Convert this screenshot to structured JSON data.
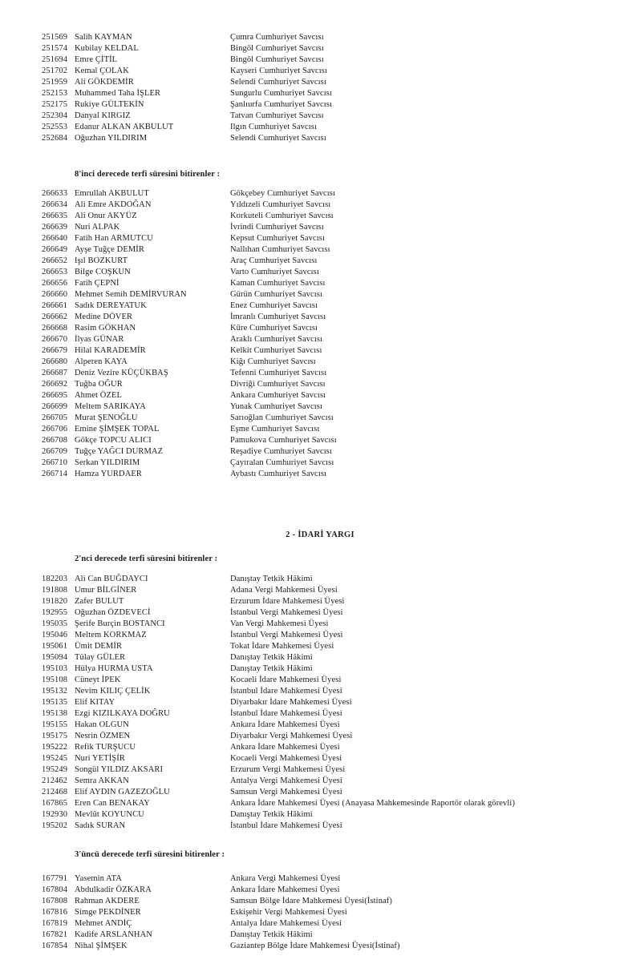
{
  "document": {
    "kind": "scanned-judicial-promotion-list",
    "text_color": "#1c1c1c",
    "page_bg": "#ffffff"
  },
  "headings": {
    "degree8": "8'inci derecede terfi süresini bitirenler :",
    "idari_yargi": "2 - İDARİ YARGI",
    "degree2": "2'nci derecede terfi süresini bitirenler :",
    "degree3": "3'üncü derecede terfi süresini bitirenler :"
  },
  "lists": {
    "adli_continuation": [
      {
        "no": "251569",
        "name": "Salih KAYMAN",
        "title": "Çumra Cumhuriyet Savcısı"
      },
      {
        "no": "251574",
        "name": "Kubilay KELDAL",
        "title": "Bingöl Cumhuriyet Savcısı"
      },
      {
        "no": "251694",
        "name": "Emre ÇİTİL",
        "title": "Bingöl Cumhuriyet Savcısı"
      },
      {
        "no": "251702",
        "name": "Kemal ÇOLAK",
        "title": "Kayseri Cumhuriyet Savcısı"
      },
      {
        "no": "251959",
        "name": "Ali GÖKDEMİR",
        "title": "Selendi Cumhuriyet Savcısı"
      },
      {
        "no": "252153",
        "name": "Muhammed Taha İŞLER",
        "title": "Sungurlu Cumhuriyet Savcısı"
      },
      {
        "no": "252175",
        "name": "Rukiye GÜLTEKİN",
        "title": "Şanlıurfa Cumhuriyet Savcısı"
      },
      {
        "no": "252304",
        "name": "Danyal KIRGIZ",
        "title": "Tatvan Cumhuriyet Savcısı"
      },
      {
        "no": "252553",
        "name": "Edanur ALKAN AKBULUT",
        "title": "Ilgın Cumhuriyet Savcısı"
      },
      {
        "no": "252684",
        "name": "Oğuzhan YILDIRIM",
        "title": "Selendi Cumhuriyet Savcısı"
      }
    ],
    "degree8": [
      {
        "no": "266633",
        "name": "Emrullah AKBULUT",
        "title": "Gökçebey Cumhuriyet Savcısı"
      },
      {
        "no": "266634",
        "name": "Ali Emre AKDOĞAN",
        "title": "Yıldızeli Cumhuriyet Savcısı"
      },
      {
        "no": "266635",
        "name": "Ali Onur AKYÜZ",
        "title": "Korkuteli Cumhuriyet Savcısı"
      },
      {
        "no": "266639",
        "name": "Nuri ALPAK",
        "title": "İvrindi Cumhuriyet Savcısı"
      },
      {
        "no": "266640",
        "name": "Fatih Han ARMUTCU",
        "title": "Kepsut Cumhuriyet Savcısı"
      },
      {
        "no": "266649",
        "name": "Ayşe Tuğçe DEMİR",
        "title": "Nallıhan Cumhuriyet Savcısı"
      },
      {
        "no": "266652",
        "name": "Işıl BOZKURT",
        "title": "Araç Cumhuriyet Savcısı"
      },
      {
        "no": "266653",
        "name": "Bilge COŞKUN",
        "title": "Varto Cumhuriyet Savcısı"
      },
      {
        "no": "266656",
        "name": "Fatih ÇEPNİ",
        "title": "Kaman Cumhuriyet Savcısı"
      },
      {
        "no": "266660",
        "name": "Mehmet Semih DEMİRVURAN",
        "title": "Gürün Cumhuriyet Savcısı"
      },
      {
        "no": "266661",
        "name": "Sadık DEREYATUK",
        "title": "Enez Cumhuriyet Savcısı"
      },
      {
        "no": "266662",
        "name": "Medine DÖVER",
        "title": "İmranlı Cumhuriyet Savcısı"
      },
      {
        "no": "266668",
        "name": "Rasim GÖKHAN",
        "title": "Küre Cumhuriyet Savcısı"
      },
      {
        "no": "266670",
        "name": "İlyas GÜNAR",
        "title": "Araklı Cumhuriyet Savcısı"
      },
      {
        "no": "266679",
        "name": "Hilal KARADEMİR",
        "title": "Kelkit Cumhuriyet Savcısı"
      },
      {
        "no": "266680",
        "name": "Alperen KAYA",
        "title": "Kiğı Cumhuriyet Savcısı"
      },
      {
        "no": "266687",
        "name": "Deniz Vezire KÜÇÜKBAŞ",
        "title": "Tefenni Cumhuriyet Savcısı"
      },
      {
        "no": "266692",
        "name": "Tuğba OĞUR",
        "title": "Divriği Cumhuriyet Savcısı"
      },
      {
        "no": "266695",
        "name": "Ahmet ÖZEL",
        "title": "Ankara Cumhuriyet Savcısı"
      },
      {
        "no": "266699",
        "name": "Meltem SARIKAYA",
        "title": "Yunak Cumhuriyet Savcısı"
      },
      {
        "no": "266705",
        "name": "Murat ŞENOĞLU",
        "title": "Sarıoğlan Cumhuriyet Savcısı"
      },
      {
        "no": "266706",
        "name": "Emine ŞİMŞEK TOPAL",
        "title": "Eşme Cumhuriyet Savcısı"
      },
      {
        "no": "266708",
        "name": "Gökçe TOPCU ALICI",
        "title": "Pamukova Cumhuriyet Savcısı"
      },
      {
        "no": "266709",
        "name": "Tuğçe YAĞCI DURMAZ",
        "title": "Reşadiye Cumhuriyet Savcısı"
      },
      {
        "no": "266710",
        "name": "Serkan YILDIRIM",
        "title": "Çayıralan Cumhuriyet Savcısı"
      },
      {
        "no": "266714",
        "name": "Hamza YURDAER",
        "title": "Aybastı Cumhuriyet Savcısı"
      }
    ],
    "degree2": [
      {
        "no": "182203",
        "name": "Ali Can BUĞDAYCI",
        "title": "Danıştay Tetkik Hâkimi"
      },
      {
        "no": "191808",
        "name": "Umur BİLGİNER",
        "title": "Adana Vergi Mahkemesi Üyesi"
      },
      {
        "no": "191820",
        "name": "Zafer BULUT",
        "title": "Erzurum İdare Mahkemesi Üyesi"
      },
      {
        "no": "192955",
        "name": "Oğuzhan ÖZDEVECİ",
        "title": "İstanbul Vergi Mahkemesi Üyesi"
      },
      {
        "no": "195035",
        "name": "Şerife Burçin BOSTANCI",
        "title": "Van Vergi Mahkemesi Üyesi"
      },
      {
        "no": "195046",
        "name": "Meltem KORKMAZ",
        "title": "İstanbul Vergi Mahkemesi Üyesi"
      },
      {
        "no": "195061",
        "name": "Ümit DEMİR",
        "title": "Tokat İdare Mahkemesi Üyesi"
      },
      {
        "no": "195094",
        "name": "Tülay GÜLER",
        "title": "Danıştay Tetkik Hâkimi"
      },
      {
        "no": "195103",
        "name": "Hülya HURMA USTA",
        "title": "Danıştay Tetkik Hâkimi"
      },
      {
        "no": "195108",
        "name": "Cüneyt İPEK",
        "title": "Kocaeli İdare Mahkemesi Üyesi"
      },
      {
        "no": "195132",
        "name": "Nevim KILIÇ ÇELİK",
        "title": "İstanbul İdare Mahkemesi Üyesi"
      },
      {
        "no": "195135",
        "name": "Elif KITAY",
        "title": "Diyarbakır İdare Mahkemesi Üyesi"
      },
      {
        "no": "195138",
        "name": "Ezgi KIZILKAYA DOĞRU",
        "title": "İstanbul İdare Mahkemesi Üyesi"
      },
      {
        "no": "195155",
        "name": "Hakan OLGUN",
        "title": "Ankara İdare Mahkemesi Üyesi"
      },
      {
        "no": "195175",
        "name": "Nesrin ÖZMEN",
        "title": "Diyarbakır Vergi Mahkemesi Üyesi"
      },
      {
        "no": "195222",
        "name": "Refik TURŞUCU",
        "title": "Ankara İdare Mahkemesi Üyesi"
      },
      {
        "no": "195245",
        "name": "Nuri YETİŞİR",
        "title": "Kocaeli Vergi Mahkemesi Üyesi"
      },
      {
        "no": "195249",
        "name": "Songül YILDIZ AKSARI",
        "title": "Erzurum Vergi Mahkemesi Üyesi"
      },
      {
        "no": "212462",
        "name": "Semra AKKAN",
        "title": "Antalya Vergi Mahkemesi Üyesi"
      },
      {
        "no": "212468",
        "name": "Elif AYDIN GAZEZOĞLU",
        "title": "Samsun Vergi Mahkemesi Üyesi"
      },
      {
        "no": "167865",
        "name": "Eren Can BENAKAY",
        "title": "Ankara İdare Mahkemesi Üyesi (Anayasa Mahkemesinde Raportör olarak görevli)"
      },
      {
        "no": "192930",
        "name": "Mevlüt KOYUNCU",
        "title": "Danıştay Tetkik Hâkimi"
      },
      {
        "no": "195202",
        "name": "Sadık SURAN",
        "title": "İstanbul İdare Mahkemesi Üyesi"
      }
    ],
    "degree3": [
      {
        "no": "167791",
        "name": "Yasemin ATA",
        "title": "Ankara Vergi Mahkemesi Üyesi"
      },
      {
        "no": "167804",
        "name": "Abdulkadir ÖZKARA",
        "title": "Ankara İdare Mahkemesi Üyesi"
      },
      {
        "no": "167808",
        "name": "Rahman AKDERE",
        "title": "Samsun Bölge İdare Mahkemesi Üyesi(İstinaf)"
      },
      {
        "no": "167816",
        "name": "Simge PEKDİNER",
        "title": "Eskişehir Vergi Mahkemesi Üyesi"
      },
      {
        "no": "167819",
        "name": "Mehmet ANDİÇ",
        "title": "Antalya İdare Mahkemesi Üyesi"
      },
      {
        "no": "167821",
        "name": "Kadife ARSLANHAN",
        "title": "Danıştay Tetkik Hâkimi"
      },
      {
        "no": "167854",
        "name": "Nihal ŞİMŞEK",
        "title": "Gaziantep Bölge İdare Mahkemesi Üyesi(İstinaf)"
      }
    ]
  }
}
